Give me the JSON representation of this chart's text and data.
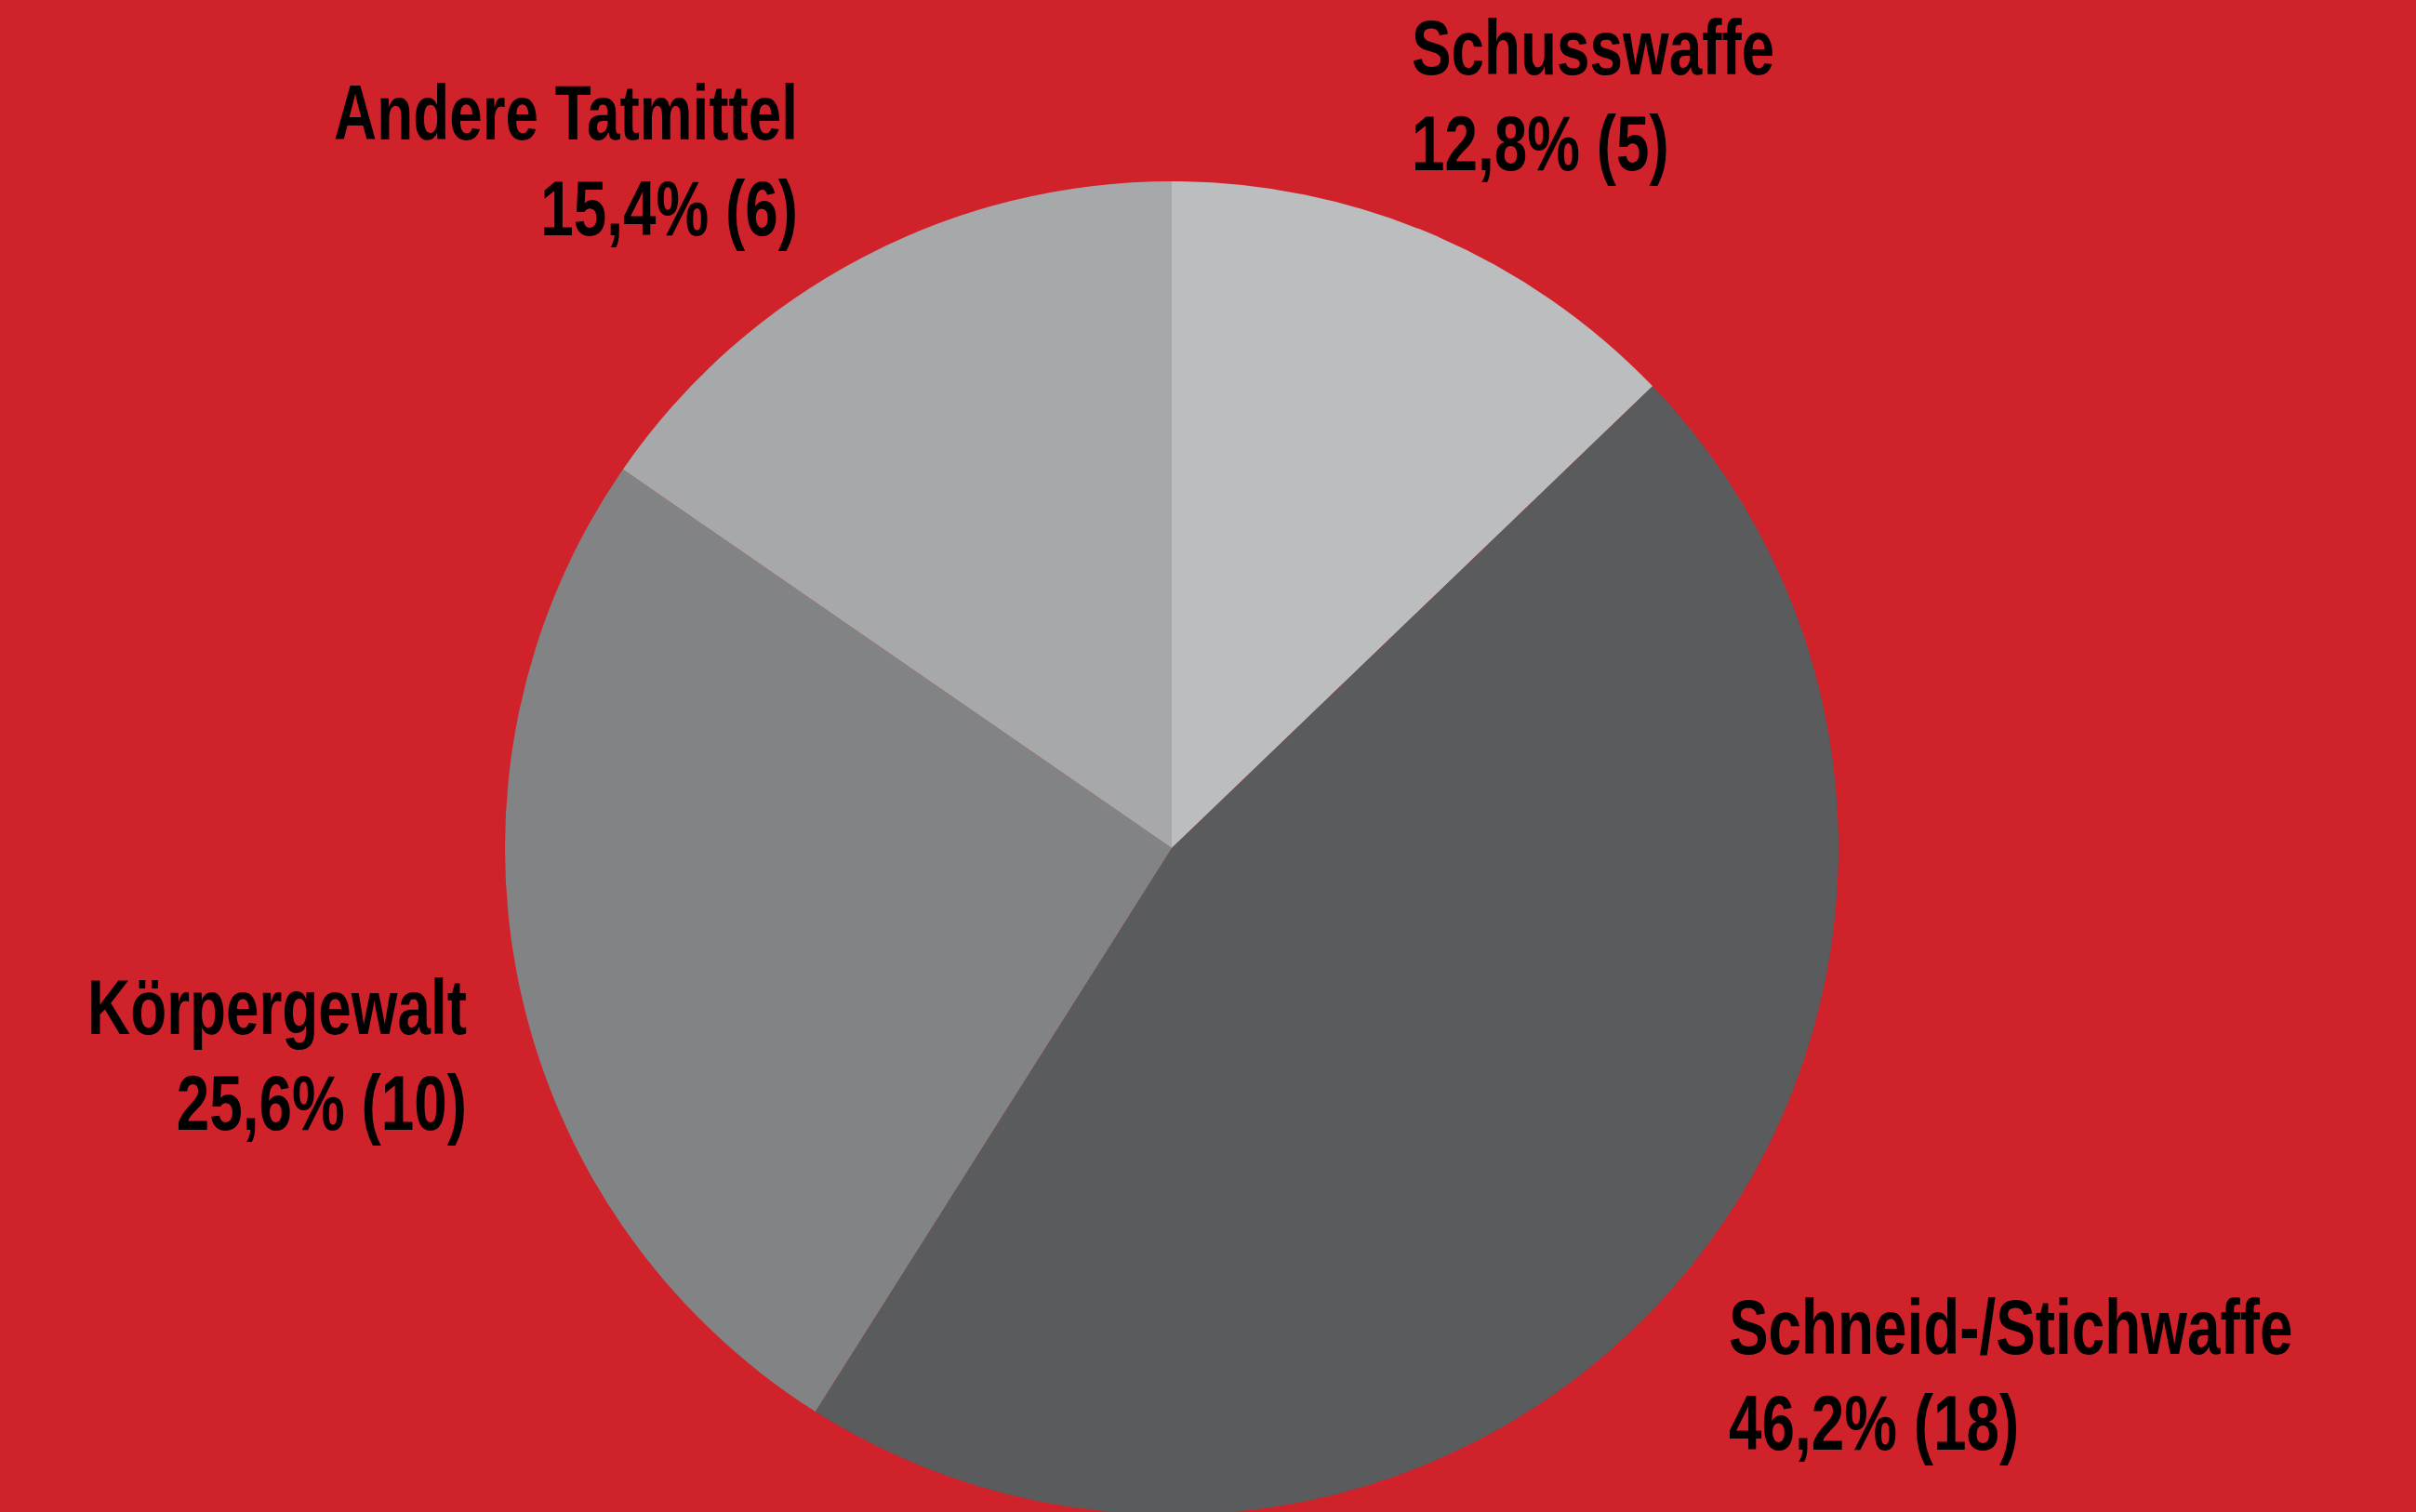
{
  "chart_data": {
    "type": "pie",
    "categories": [
      "Schusswaffe",
      "Schneid-/Stichwaffe",
      "Körpergewalt",
      "Andere Tatmittel"
    ],
    "values": [
      5,
      18,
      10,
      6
    ],
    "value_labels": [
      "12,8% (5)",
      "46,2% (18)",
      "25,6% (10)",
      "15,4% (6)"
    ],
    "colors": [
      "#bcbdbf",
      "#5a5b5d",
      "#828385",
      "#a7a8aa"
    ]
  }
}
